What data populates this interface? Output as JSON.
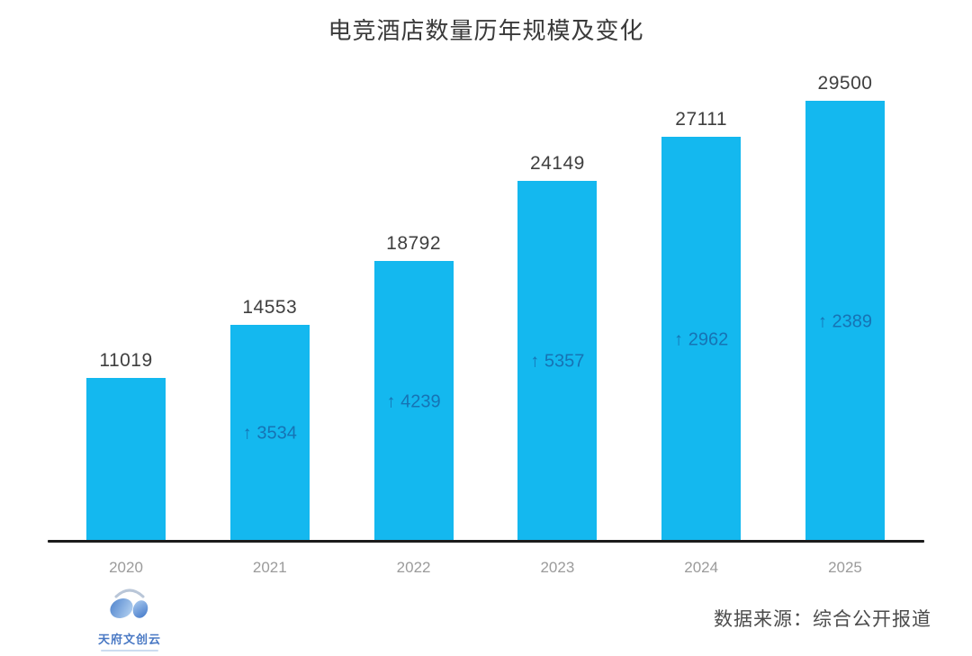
{
  "title": "电竞酒店数量历年规模及变化",
  "chart_data": {
    "type": "bar",
    "title": "电竞酒店数量历年规模及变化",
    "categories": [
      "2020",
      "2021",
      "2022",
      "2023",
      "2024",
      "2025"
    ],
    "values": [
      11019,
      14553,
      18792,
      24149,
      27111,
      29500
    ],
    "changes": [
      null,
      3534,
      4239,
      5357,
      2962,
      2389
    ],
    "change_prefix": "↑",
    "xlabel": "",
    "ylabel": "",
    "ylim": [
      0,
      29500
    ],
    "grid": false,
    "legend_position": "none",
    "bar_color": "#14b8ef",
    "change_label_color": "#1673b4",
    "value_label_color": "#3f3f3f",
    "axis_color": "#1c1c1c",
    "year_label_color": "#9b9b9b"
  },
  "footer": {
    "logo_text": "天府文创云",
    "logo_icon": "panda-headphones-icon",
    "source": "数据来源：综合公开报道"
  }
}
